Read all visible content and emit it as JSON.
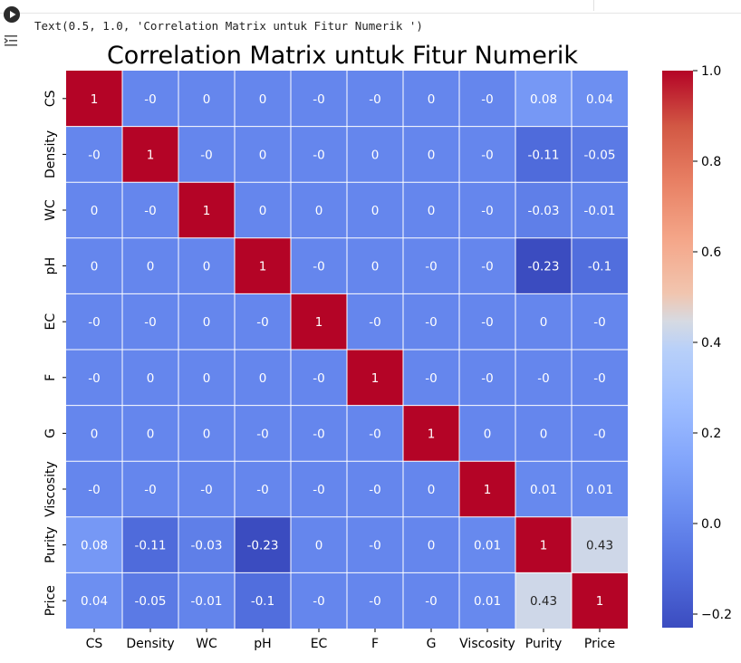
{
  "notebook": {
    "output_text": "Text(0.5, 1.0, 'Correlation Matrix untuk Fitur Numerik ')",
    "run_icon": "play-circle-icon",
    "output_icon": "output-toggle-icon"
  },
  "chart_data": {
    "type": "heatmap",
    "title": "Correlation Matrix untuk Fitur Numerik",
    "labels": [
      "CS",
      "Density",
      "WC",
      "pH",
      "EC",
      "F",
      "G",
      "Viscosity",
      "Purity",
      "Price"
    ],
    "matrix": [
      [
        1,
        0,
        0,
        0,
        0,
        0,
        0,
        0,
        0.08,
        0.04
      ],
      [
        0,
        1,
        0,
        0,
        0,
        0,
        0,
        0,
        -0.11,
        -0.05
      ],
      [
        0,
        0,
        1,
        0,
        0,
        0,
        0,
        0,
        -0.03,
        -0.01
      ],
      [
        0,
        0,
        0,
        1,
        0,
        0,
        0,
        0,
        -0.23,
        -0.1
      ],
      [
        0,
        0,
        0,
        0,
        1,
        0,
        0,
        0,
        0,
        0
      ],
      [
        0,
        0,
        0,
        0,
        0,
        1,
        0,
        0,
        0,
        0
      ],
      [
        0,
        0,
        0,
        0,
        0,
        0,
        1,
        0,
        0,
        0
      ],
      [
        0,
        0,
        0,
        0,
        0,
        0,
        0,
        1,
        0.01,
        0.01
      ],
      [
        0.08,
        -0.11,
        -0.03,
        -0.23,
        0,
        0,
        0,
        0.01,
        1,
        0.43
      ],
      [
        0.04,
        -0.05,
        -0.01,
        -0.1,
        0,
        0,
        0,
        0.01,
        0.43,
        1
      ]
    ],
    "colormap": "coolwarm",
    "vmin": -0.23,
    "vmax": 1.0,
    "colorbar_ticks": [
      "1.0",
      "0.8",
      "0.6",
      "0.4",
      "0.2",
      "0.0",
      "−0.2"
    ],
    "colorbar_tick_values": [
      1.0,
      0.8,
      0.6,
      0.4,
      0.2,
      0.0,
      -0.2
    ],
    "grid_lines": true,
    "grid_color": "#ffffff"
  }
}
